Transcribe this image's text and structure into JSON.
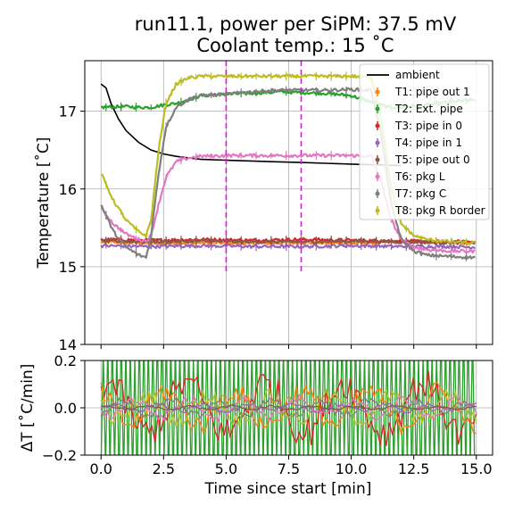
{
  "chart_data": [
    {
      "type": "line",
      "title": "run11.1, power per SiPM: 37.5 mV\nCoolant temp.: 15 ˚C",
      "xlabel": "",
      "ylabel": "Temperature [˚C]",
      "xlim": [
        -0.65,
        15.65
      ],
      "ylim": [
        14,
        17.65
      ],
      "xticks": [
        0,
        2.5,
        5,
        7.5,
        10,
        12.5,
        15
      ],
      "yticks": [
        14,
        15,
        16,
        17
      ],
      "ytick_labels": [
        "14",
        "15",
        "16",
        "17"
      ],
      "grid": true,
      "legend_position": "top-right",
      "vlines": [
        5.0,
        8.0
      ],
      "vline_color": "#ff00ff",
      "series": [
        {
          "name": "ambient",
          "color": "#000000",
          "errorbars": false,
          "x": [
            0,
            0.2,
            0.4,
            0.7,
            1.0,
            1.5,
            2.0,
            2.5,
            3.0,
            3.5,
            4.0,
            5.0,
            6.0,
            7.0,
            8.0,
            9.0,
            10.0,
            11.0,
            12.0
          ],
          "y": [
            17.35,
            17.3,
            17.1,
            16.9,
            16.75,
            16.6,
            16.5,
            16.45,
            16.42,
            16.4,
            16.38,
            16.37,
            16.36,
            16.35,
            16.34,
            16.33,
            16.32,
            16.31,
            16.3
          ]
        },
        {
          "name": "T1: pipe out 1",
          "color": "#ff7f0e",
          "errorbars": true,
          "x": [
            0,
            2,
            4,
            6,
            8,
            10,
            12,
            14,
            15
          ],
          "y": [
            15.32,
            15.3,
            15.31,
            15.3,
            15.31,
            15.3,
            15.32,
            15.31,
            15.3
          ]
        },
        {
          "name": "T2: Ext. pipe",
          "color": "#2ca02c",
          "errorbars": true,
          "x": [
            0,
            1.0,
            1.5,
            2.0,
            2.5,
            3.0,
            3.5,
            4.0,
            5.0,
            6.0,
            7.0,
            8.0,
            9.0,
            10.0,
            11.0,
            11.5,
            12.0,
            13.0,
            14.0,
            15.0
          ],
          "y": [
            17.05,
            17.06,
            17.05,
            17.05,
            17.08,
            17.1,
            17.15,
            17.2,
            17.22,
            17.23,
            17.25,
            17.24,
            17.23,
            17.2,
            17.1,
            17.05,
            17.05,
            17.08,
            17.12,
            17.15
          ]
        },
        {
          "name": "T3: pipe in 0",
          "color": "#d62728",
          "errorbars": true,
          "x": [
            0,
            2,
            4,
            6,
            8,
            10,
            12,
            14,
            15
          ],
          "y": [
            15.35,
            15.34,
            15.35,
            15.34,
            15.35,
            15.34,
            15.33,
            15.32,
            15.32
          ]
        },
        {
          "name": "T4: pipe in 1",
          "color": "#9467bd",
          "errorbars": true,
          "x": [
            0,
            2,
            4,
            6,
            8,
            10,
            12,
            14,
            15
          ],
          "y": [
            15.27,
            15.26,
            15.27,
            15.26,
            15.26,
            15.27,
            15.26,
            15.26,
            15.25
          ]
        },
        {
          "name": "T5: pipe out 0",
          "color": "#8c564b",
          "errorbars": true,
          "x": [
            0,
            2,
            4,
            6,
            8,
            10,
            12,
            14,
            15
          ],
          "y": [
            15.33,
            15.32,
            15.33,
            15.32,
            15.32,
            15.33,
            15.32,
            15.31,
            15.31
          ]
        },
        {
          "name": "T6: pkg L",
          "color": "#e377c2",
          "errorbars": true,
          "x": [
            0,
            0.5,
            1.0,
            1.5,
            1.8,
            2.0,
            2.3,
            2.6,
            3.0,
            3.5,
            4.0,
            5.0,
            6.0,
            7.0,
            8.0,
            9.0,
            10.0,
            10.8,
            11.2,
            11.6,
            12.0,
            12.5,
            13.0,
            14.0,
            15.0
          ],
          "y": [
            15.75,
            15.55,
            15.42,
            15.35,
            15.33,
            15.4,
            15.8,
            16.15,
            16.35,
            16.4,
            16.42,
            16.43,
            16.43,
            16.43,
            16.43,
            16.43,
            16.43,
            16.42,
            16.1,
            15.6,
            15.35,
            15.25,
            15.22,
            15.2,
            15.2
          ]
        },
        {
          "name": "T7: pkg C",
          "color": "#7f7f7f",
          "errorbars": true,
          "x": [
            0,
            0.5,
            1.0,
            1.5,
            1.8,
            2.0,
            2.3,
            2.6,
            3.0,
            3.5,
            4.0,
            5.0,
            6.0,
            7.0,
            8.0,
            9.0,
            10.0,
            10.8,
            11.2,
            11.6,
            12.0,
            12.5,
            13.0,
            14.0,
            15.0
          ],
          "y": [
            15.8,
            15.45,
            15.25,
            15.15,
            15.12,
            15.4,
            16.2,
            16.8,
            17.05,
            17.15,
            17.2,
            17.22,
            17.25,
            17.27,
            17.27,
            17.27,
            17.28,
            17.27,
            16.7,
            15.8,
            15.35,
            15.2,
            15.15,
            15.13,
            15.12
          ]
        },
        {
          "name": "T8: pkg R border",
          "color": "#bcbd22",
          "errorbars": true,
          "x": [
            0,
            0.5,
            1.0,
            1.5,
            1.8,
            2.0,
            2.3,
            2.6,
            3.0,
            3.5,
            4.0,
            5.0,
            6.0,
            7.0,
            8.0,
            9.0,
            10.0,
            10.8,
            11.2,
            11.6,
            12.0,
            12.5,
            13.0,
            14.0,
            15.0
          ],
          "y": [
            16.2,
            15.85,
            15.6,
            15.45,
            15.4,
            15.6,
            16.5,
            17.1,
            17.35,
            17.43,
            17.45,
            17.45,
            17.45,
            17.45,
            17.45,
            17.45,
            17.45,
            17.44,
            16.9,
            16.0,
            15.55,
            15.4,
            15.35,
            15.32,
            15.3
          ]
        }
      ]
    },
    {
      "type": "line",
      "title": "",
      "xlabel": "Time since start [min]",
      "ylabel": "ΔT [˚C/min]",
      "xlim": [
        -0.65,
        15.65
      ],
      "ylim": [
        -0.2,
        0.2
      ],
      "xticks": [
        0,
        2.5,
        5,
        7.5,
        10,
        12.5,
        15
      ],
      "xtick_labels": [
        "0.0",
        "2.5",
        "5.0",
        "7.5",
        "10.0",
        "12.5",
        "15.0"
      ],
      "yticks": [
        -0.2,
        0.0,
        0.2
      ],
      "ytick_labels": [
        "−0.2",
        "0.0",
        "0.2"
      ],
      "grid": true,
      "series": [
        {
          "color": "#2ca02c",
          "kind": "fast-oscillating",
          "amplitude": 0.35
        },
        {
          "color": "#d62728",
          "kind": "oscillating",
          "amplitude": 0.15
        },
        {
          "color": "#ff7f0e",
          "kind": "oscillating",
          "amplitude": 0.1
        },
        {
          "color": "#bcbd22",
          "kind": "oscillating",
          "amplitude": 0.07
        },
        {
          "color": "#e377c2",
          "kind": "oscillating",
          "amplitude": 0.05
        },
        {
          "color": "#7f7f7f",
          "kind": "oscillating",
          "amplitude": 0.04
        },
        {
          "color": "#9467bd",
          "kind": "oscillating",
          "amplitude": 0.02
        },
        {
          "color": "#8c564b",
          "kind": "oscillating",
          "amplitude": 0.01
        }
      ]
    }
  ]
}
